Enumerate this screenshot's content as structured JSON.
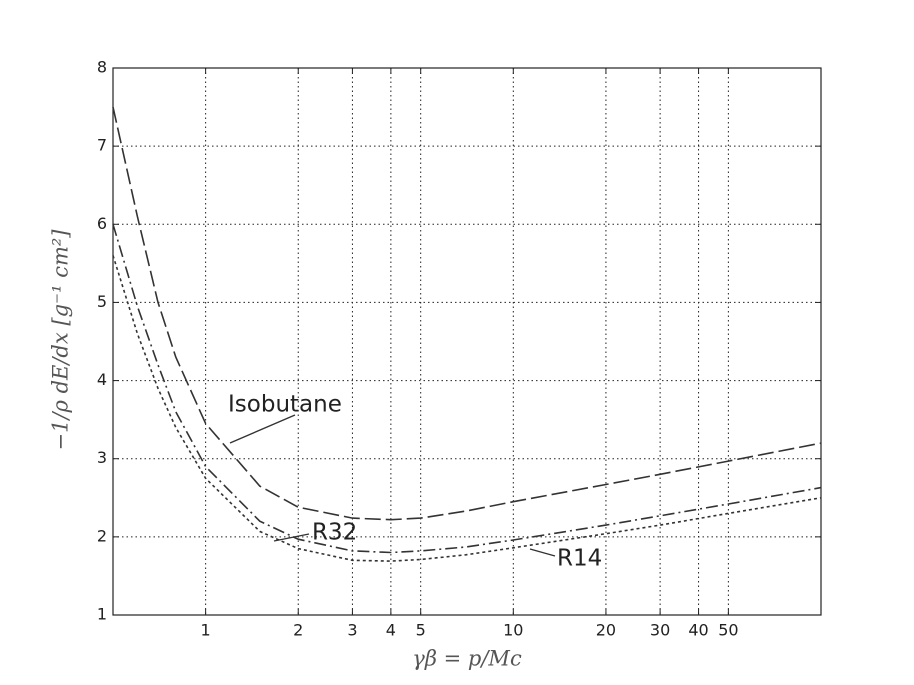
{
  "chart_data": {
    "type": "line",
    "xlabel": "γβ = p/Mc",
    "ylabel": "−1/ρ dE/dx [g⁻¹ cm²]",
    "xscale": "log",
    "grid": true,
    "xlim": [
      0.5,
      100
    ],
    "ylim": [
      1,
      8
    ],
    "xticks": [
      1,
      2,
      3,
      4,
      5,
      10,
      20,
      30,
      40,
      50
    ],
    "yticks": [
      1,
      2,
      3,
      4,
      5,
      6,
      7,
      8
    ],
    "x": [
      0.5,
      0.6,
      0.7,
      0.8,
      1,
      1.5,
      2,
      3,
      4,
      5,
      7,
      10,
      20,
      30,
      50,
      100
    ],
    "series": [
      {
        "name": "Isobutane",
        "color": "#333333",
        "linestyle": "dashed",
        "values": [
          7.5,
          6.1,
          5.0,
          4.3,
          3.45,
          2.65,
          2.38,
          2.24,
          2.22,
          2.24,
          2.33,
          2.45,
          2.67,
          2.8,
          2.97,
          3.2
        ]
      },
      {
        "name": "R32",
        "color": "#333333",
        "linestyle": "dashdot",
        "values": [
          6.0,
          4.95,
          4.2,
          3.6,
          2.9,
          2.2,
          1.97,
          1.82,
          1.8,
          1.82,
          1.87,
          1.96,
          2.15,
          2.27,
          2.42,
          2.63
        ]
      },
      {
        "name": "R14",
        "color": "#333333",
        "linestyle": "dotted",
        "values": [
          5.6,
          4.6,
          3.9,
          3.4,
          2.75,
          2.07,
          1.85,
          1.7,
          1.69,
          1.71,
          1.77,
          1.86,
          2.04,
          2.15,
          2.3,
          2.5
        ]
      }
    ]
  }
}
